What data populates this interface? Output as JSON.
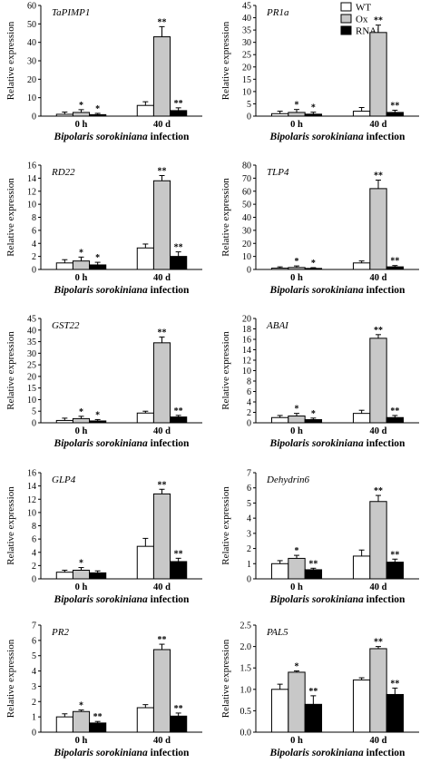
{
  "legend": {
    "entries": [
      "WT",
      "Ox",
      "RNAi"
    ],
    "colors": {
      "WT": "#ffffff",
      "Ox": "#c8c8c8",
      "RNAi": "#000000"
    }
  },
  "chart_data": [
    {
      "type": "bar",
      "title": "TaPIMP1",
      "categories": [
        "0 h",
        "40 d"
      ],
      "xlabel_italic": "Bipolaris sorokiniana",
      "xlabel_rest": " infection",
      "ylabel": "Relative expression",
      "ylim": [
        0,
        60
      ],
      "yticks": [
        0,
        10,
        20,
        30,
        40,
        50,
        60
      ],
      "series": [
        {
          "name": "WT",
          "values": [
            1,
            5.8
          ],
          "errors": [
            1.2,
            2.0
          ],
          "sig": [
            "",
            ""
          ]
        },
        {
          "name": "Ox",
          "values": [
            2,
            43
          ],
          "errors": [
            1.5,
            5.5
          ],
          "sig": [
            "*",
            "**"
          ]
        },
        {
          "name": "RNAi",
          "values": [
            0.8,
            3
          ],
          "errors": [
            0.7,
            1.5
          ],
          "sig": [
            "*",
            "**"
          ]
        }
      ]
    },
    {
      "type": "bar",
      "title": "PR1a",
      "categories": [
        "0 h",
        "40 d"
      ],
      "xlabel_italic": "Bipolaris sorokiniana",
      "xlabel_rest": " infection",
      "ylabel": "Relative expression",
      "ylim": [
        0,
        45
      ],
      "yticks": [
        0,
        5,
        10,
        15,
        20,
        25,
        30,
        35,
        40,
        45
      ],
      "series": [
        {
          "name": "WT",
          "values": [
            1,
            2
          ],
          "errors": [
            1.0,
            1.5
          ],
          "sig": [
            "",
            ""
          ]
        },
        {
          "name": "Ox",
          "values": [
            1.5,
            34
          ],
          "errors": [
            1.2,
            3.0
          ],
          "sig": [
            "*",
            "**"
          ]
        },
        {
          "name": "RNAi",
          "values": [
            0.8,
            1.5
          ],
          "errors": [
            0.8,
            0.9
          ],
          "sig": [
            "*",
            "**"
          ]
        }
      ]
    },
    {
      "type": "bar",
      "title": "RD22",
      "categories": [
        "0 h",
        "40 d"
      ],
      "xlabel_italic": "Bipolaris sorokiniana",
      "xlabel_rest": " infection",
      "ylabel": "Relative expression",
      "ylim": [
        0,
        16
      ],
      "yticks": [
        0,
        2,
        4,
        6,
        8,
        10,
        12,
        14,
        16
      ],
      "series": [
        {
          "name": "WT",
          "values": [
            1,
            3.3
          ],
          "errors": [
            0.5,
            0.6
          ],
          "sig": [
            "",
            ""
          ]
        },
        {
          "name": "Ox",
          "values": [
            1.3,
            13.6
          ],
          "errors": [
            0.6,
            0.8
          ],
          "sig": [
            "*",
            "**"
          ]
        },
        {
          "name": "RNAi",
          "values": [
            0.7,
            2.0
          ],
          "errors": [
            0.4,
            0.7
          ],
          "sig": [
            "*",
            "**"
          ]
        }
      ]
    },
    {
      "type": "bar",
      "title": "TLP4",
      "categories": [
        "0 h",
        "40 d"
      ],
      "xlabel_italic": "Bipolaris sorokiniana",
      "xlabel_rest": " infection",
      "ylabel": "Relative expression",
      "ylim": [
        0,
        80
      ],
      "yticks": [
        0,
        10,
        20,
        30,
        40,
        50,
        60,
        70,
        80
      ],
      "series": [
        {
          "name": "WT",
          "values": [
            1,
            5
          ],
          "errors": [
            1.0,
            1.5
          ],
          "sig": [
            "",
            ""
          ]
        },
        {
          "name": "Ox",
          "values": [
            1.5,
            62
          ],
          "errors": [
            1.2,
            6.5
          ],
          "sig": [
            "*",
            "**"
          ]
        },
        {
          "name": "RNAi",
          "values": [
            0.8,
            2
          ],
          "errors": [
            0.6,
            1.0
          ],
          "sig": [
            "*",
            "**"
          ]
        }
      ]
    },
    {
      "type": "bar",
      "title": "GST22",
      "categories": [
        "0 h",
        "40 d"
      ],
      "xlabel_italic": "Bipolaris sorokiniana",
      "xlabel_rest": " infection",
      "ylabel": "Relative expression",
      "ylim": [
        0,
        45
      ],
      "yticks": [
        0,
        5,
        10,
        15,
        20,
        25,
        30,
        35,
        40,
        45
      ],
      "series": [
        {
          "name": "WT",
          "values": [
            1,
            4.2
          ],
          "errors": [
            1.0,
            0.8
          ],
          "sig": [
            "",
            ""
          ]
        },
        {
          "name": "Ox",
          "values": [
            1.8,
            34.5
          ],
          "errors": [
            1.0,
            2.5
          ],
          "sig": [
            "*",
            "**"
          ]
        },
        {
          "name": "RNAi",
          "values": [
            0.8,
            2.5
          ],
          "errors": [
            0.6,
            0.7
          ],
          "sig": [
            "*",
            "**"
          ]
        }
      ]
    },
    {
      "type": "bar",
      "title": "ABAI",
      "categories": [
        "0 h",
        "40 d"
      ],
      "xlabel_italic": "Bipolaris sorokiniana",
      "xlabel_rest": " infection",
      "ylabel": "Relative expression",
      "ylim": [
        0,
        20
      ],
      "yticks": [
        0,
        2,
        4,
        6,
        8,
        10,
        12,
        14,
        16,
        18,
        20
      ],
      "series": [
        {
          "name": "WT",
          "values": [
            1,
            1.8
          ],
          "errors": [
            0.4,
            0.6
          ],
          "sig": [
            "",
            ""
          ]
        },
        {
          "name": "Ox",
          "values": [
            1.3,
            16.2
          ],
          "errors": [
            0.5,
            0.7
          ],
          "sig": [
            "*",
            "**"
          ]
        },
        {
          "name": "RNAi",
          "values": [
            0.6,
            1.0
          ],
          "errors": [
            0.3,
            0.4
          ],
          "sig": [
            "*",
            "**"
          ]
        }
      ]
    },
    {
      "type": "bar",
      "title": "GLP4",
      "categories": [
        "0 h",
        "40 d"
      ],
      "xlabel_italic": "Bipolaris sorokiniana",
      "xlabel_rest": " infection",
      "ylabel": "Relative expression",
      "ylim": [
        0,
        16
      ],
      "yticks": [
        0,
        2,
        4,
        6,
        8,
        10,
        12,
        14,
        16
      ],
      "series": [
        {
          "name": "WT",
          "values": [
            1,
            4.9
          ],
          "errors": [
            0.3,
            1.2
          ],
          "sig": [
            "",
            ""
          ]
        },
        {
          "name": "Ox",
          "values": [
            1.3,
            12.8
          ],
          "errors": [
            0.4,
            0.7
          ],
          "sig": [
            "*",
            "**"
          ]
        },
        {
          "name": "RNAi",
          "values": [
            0.9,
            2.6
          ],
          "errors": [
            0.3,
            0.5
          ],
          "sig": [
            "",
            "**"
          ]
        }
      ]
    },
    {
      "type": "bar",
      "title": "Dehydrin6",
      "categories": [
        "0 h",
        "40 d"
      ],
      "xlabel_italic": "Bipolaris sorokiniana",
      "xlabel_rest": " infection",
      "ylabel": "Relative expression",
      "ylim": [
        0,
        7
      ],
      "yticks": [
        0,
        1,
        2,
        3,
        4,
        5,
        6,
        7
      ],
      "series": [
        {
          "name": "WT",
          "values": [
            1,
            1.5
          ],
          "errors": [
            0.2,
            0.4
          ],
          "sig": [
            "",
            ""
          ]
        },
        {
          "name": "Ox",
          "values": [
            1.35,
            5.1
          ],
          "errors": [
            0.2,
            0.4
          ],
          "sig": [
            "*",
            "**"
          ]
        },
        {
          "name": "RNAi",
          "values": [
            0.6,
            1.1
          ],
          "errors": [
            0.1,
            0.2
          ],
          "sig": [
            "**",
            "**"
          ]
        }
      ]
    },
    {
      "type": "bar",
      "title": "PR2",
      "categories": [
        "0 h",
        "40 d"
      ],
      "xlabel_italic": "Bipolaris sorokiniana",
      "xlabel_rest": " infection",
      "ylabel": "Relative expression",
      "ylim": [
        0,
        7
      ],
      "yticks": [
        0,
        1,
        2,
        3,
        4,
        5,
        6,
        7
      ],
      "series": [
        {
          "name": "WT",
          "values": [
            1,
            1.6
          ],
          "errors": [
            0.2,
            0.2
          ],
          "sig": [
            "",
            ""
          ]
        },
        {
          "name": "Ox",
          "values": [
            1.35,
            5.4
          ],
          "errors": [
            0.1,
            0.35
          ],
          "sig": [
            "*",
            "**"
          ]
        },
        {
          "name": "RNAi",
          "values": [
            0.6,
            1.05
          ],
          "errors": [
            0.1,
            0.2
          ],
          "sig": [
            "**",
            "**"
          ]
        }
      ]
    },
    {
      "type": "bar",
      "title": "PAL5",
      "categories": [
        "0 h",
        "40 d"
      ],
      "xlabel_italic": "Bipolaris sorokiniana",
      "xlabel_rest": " infection",
      "ylabel": "Relative expression",
      "ylim": [
        0,
        2.5
      ],
      "yticks": [
        0,
        0.5,
        1.0,
        1.5,
        2.0,
        2.5
      ],
      "series": [
        {
          "name": "WT",
          "values": [
            1.0,
            1.22
          ],
          "errors": [
            0.12,
            0.05
          ],
          "sig": [
            "",
            ""
          ]
        },
        {
          "name": "Ox",
          "values": [
            1.4,
            1.95
          ],
          "errors": [
            0.03,
            0.05
          ],
          "sig": [
            "*",
            "**"
          ]
        },
        {
          "name": "RNAi",
          "values": [
            0.65,
            0.88
          ],
          "errors": [
            0.2,
            0.15
          ],
          "sig": [
            "**",
            "**"
          ]
        }
      ]
    }
  ]
}
